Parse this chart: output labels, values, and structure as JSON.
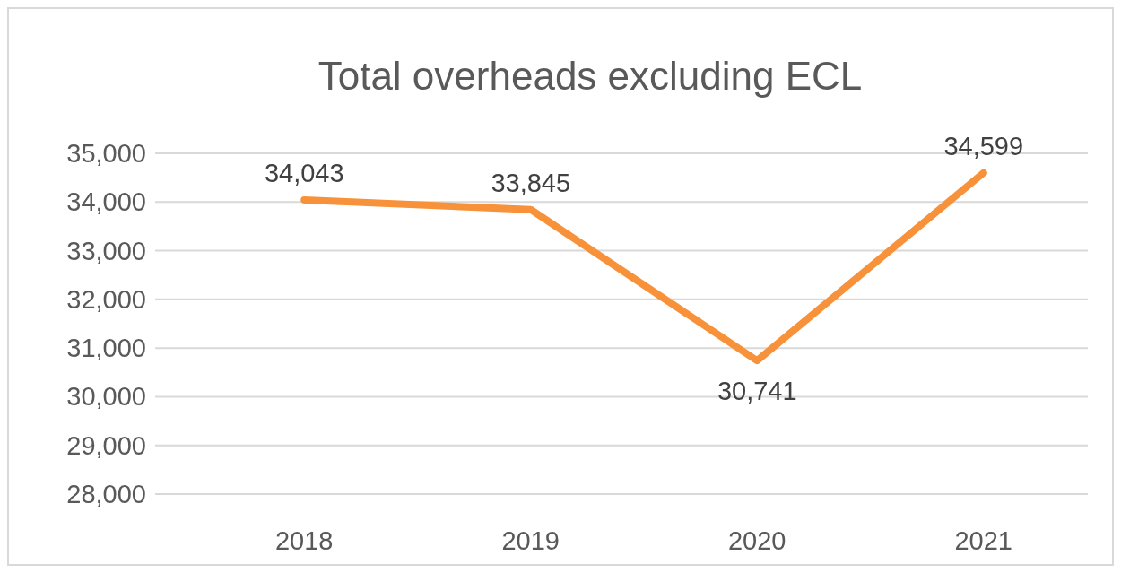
{
  "chart_data": {
    "type": "line",
    "title": "Total overheads excluding ECL",
    "categories": [
      "2018",
      "2019",
      "2020",
      "2021"
    ],
    "series": [
      {
        "color": "#f7923a",
        "values": [
          34043,
          33845,
          30741,
          34599
        ],
        "value_labels": [
          "34,043",
          "33,845",
          "30,741",
          "34,599"
        ]
      }
    ],
    "ylim": [
      28000,
      35000
    ],
    "yticks": [
      {
        "value": 28000,
        "label": "28,000"
      },
      {
        "value": 29000,
        "label": "29,000"
      },
      {
        "value": 30000,
        "label": "30,000"
      },
      {
        "value": 31000,
        "label": "31,000"
      },
      {
        "value": 32000,
        "label": "32,000"
      },
      {
        "value": 33000,
        "label": "33,000"
      },
      {
        "value": 34000,
        "label": "34,000"
      },
      {
        "value": 35000,
        "label": "35,000"
      }
    ],
    "grid": "y",
    "marker": "none",
    "line_style": "solid"
  }
}
